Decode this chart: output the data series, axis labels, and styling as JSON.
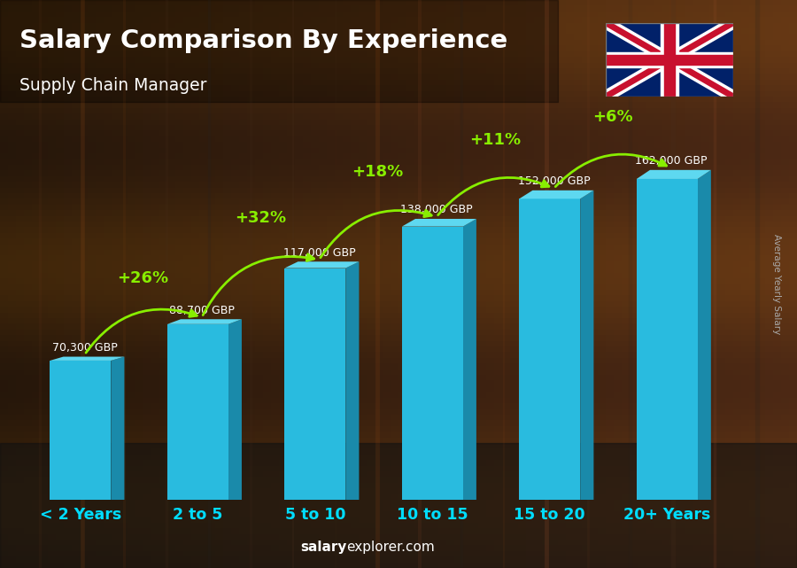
{
  "title": "Salary Comparison By Experience",
  "subtitle": "Supply Chain Manager",
  "categories": [
    "< 2 Years",
    "2 to 5",
    "5 to 10",
    "10 to 15",
    "15 to 20",
    "20+ Years"
  ],
  "values": [
    70300,
    88700,
    117000,
    138000,
    152000,
    162000
  ],
  "labels": [
    "70,300 GBP",
    "88,700 GBP",
    "117,000 GBP",
    "138,000 GBP",
    "152,000 GBP",
    "162,000 GBP"
  ],
  "pct_changes": [
    "+26%",
    "+32%",
    "+18%",
    "+11%",
    "+6%"
  ],
  "color_front": "#29BBDF",
  "color_top": "#5ED8F0",
  "color_side": "#1A8AAA",
  "text_color_white": "#FFFFFF",
  "text_color_cyan": "#00DDFF",
  "text_color_green": "#88EE00",
  "text_color_gray": "#CCCCCC",
  "footer_salary": "salary",
  "footer_rest": "explorer.com",
  "ylabel": "Average Yearly Salary",
  "ylim_max": 195000,
  "bar_width": 0.52,
  "bg_color": "#3a2a1a"
}
